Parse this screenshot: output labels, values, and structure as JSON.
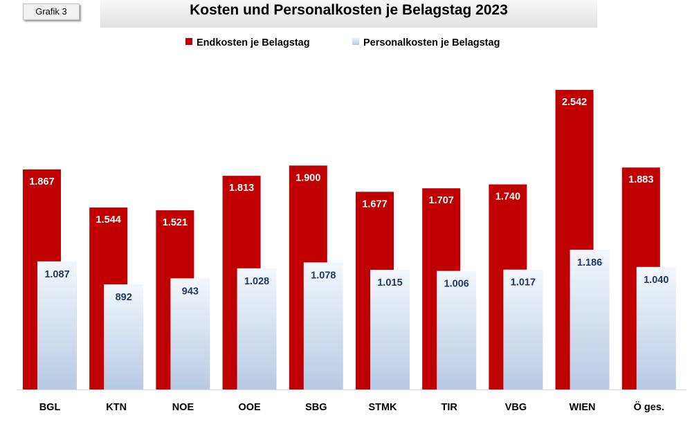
{
  "badge": "Grafik 3",
  "chart_data": {
    "type": "bar",
    "title": "Kosten und Personalkosten je Belagstag 2023",
    "categories": [
      "BGL",
      "KTN",
      "NOE",
      "OOE",
      "SBG",
      "STMK",
      "TIR",
      "VBG",
      "WIEN",
      "Ö ges."
    ],
    "series": [
      {
        "name": "Endkosten je Belagstag",
        "values": [
          1867,
          1544,
          1521,
          1813,
          1900,
          1677,
          1707,
          1740,
          2542,
          1883
        ],
        "labels": [
          "1.867",
          "1.544",
          "1.521",
          "1.813",
          "1.900",
          "1.677",
          "1.707",
          "1.740",
          "2.542",
          "1.883"
        ],
        "color": "#c00000"
      },
      {
        "name": "Personalkosten je Belagstag",
        "values": [
          1087,
          892,
          943,
          1028,
          1078,
          1015,
          1006,
          1017,
          1186,
          1040
        ],
        "labels": [
          "1.087",
          "892",
          "943",
          "1.028",
          "1.078",
          "1.015",
          "1.006",
          "1.017",
          "1.186",
          "1.040"
        ],
        "color": "#c9d7ea"
      }
    ],
    "legend": "top-center",
    "grid": false,
    "ylim": [
      0,
      2700
    ]
  }
}
